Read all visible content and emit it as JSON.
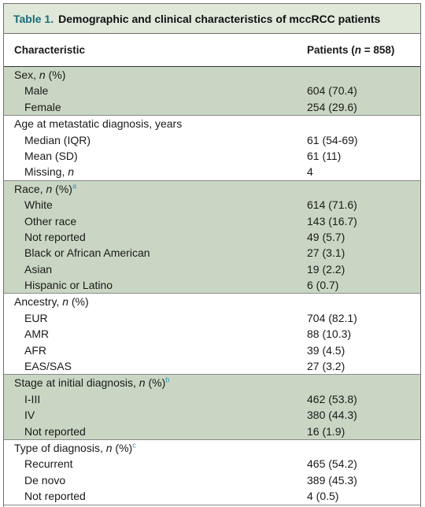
{
  "table": {
    "label": "Table 1.",
    "title": "Demographic and clinical characteristics of mccRCC patients",
    "col_characteristic": "Characteristic",
    "col_patients": "Patients (n = 858)"
  },
  "sections": [
    {
      "heading": "Sex, n (%)",
      "sup": "",
      "shaded": true,
      "rows": [
        {
          "label": "Male",
          "value": "604 (70.4)"
        },
        {
          "label": "Female",
          "value": "254 (29.6)"
        }
      ]
    },
    {
      "heading": "Age at metastatic diagnosis, years",
      "sup": "",
      "shaded": false,
      "rows": [
        {
          "label": "Median (IQR)",
          "value": "61 (54-69)"
        },
        {
          "label": "Mean (SD)",
          "value": "61 (11)"
        },
        {
          "label": "Missing, n",
          "value": "4"
        }
      ]
    },
    {
      "heading": "Race, n (%)",
      "sup": "a",
      "shaded": true,
      "rows": [
        {
          "label": "White",
          "value": "614 (71.6)"
        },
        {
          "label": "Other race",
          "value": "143 (16.7)"
        },
        {
          "label": "Not reported",
          "value": "49 (5.7)"
        },
        {
          "label": "Black or African American",
          "value": "27 (3.1)"
        },
        {
          "label": "Asian",
          "value": "19 (2.2)"
        },
        {
          "label": "Hispanic or Latino",
          "value": "6 (0.7)"
        }
      ]
    },
    {
      "heading": "Ancestry, n (%)",
      "sup": "",
      "shaded": false,
      "rows": [
        {
          "label": "EUR",
          "value": "704 (82.1)"
        },
        {
          "label": "AMR",
          "value": "88 (10.3)"
        },
        {
          "label": "AFR",
          "value": "39 (4.5)"
        },
        {
          "label": "EAS/SAS",
          "value": "27 (3.2)"
        }
      ]
    },
    {
      "heading": "Stage at initial diagnosis, n (%)",
      "sup": "b",
      "shaded": true,
      "rows": [
        {
          "label": "I-III",
          "value": "462 (53.8)"
        },
        {
          "label": "IV",
          "value": "380 (44.3)"
        },
        {
          "label": "Not reported",
          "value": "16 (1.9)"
        }
      ]
    },
    {
      "heading": "Type of diagnosis, n (%)",
      "sup": "c",
      "shaded": false,
      "rows": [
        {
          "label": "Recurrent",
          "value": "465 (54.2)"
        },
        {
          "label": "De novo",
          "value": "389 (45.3)"
        },
        {
          "label": "Not reported",
          "value": "4 (0.5)"
        }
      ]
    }
  ]
}
